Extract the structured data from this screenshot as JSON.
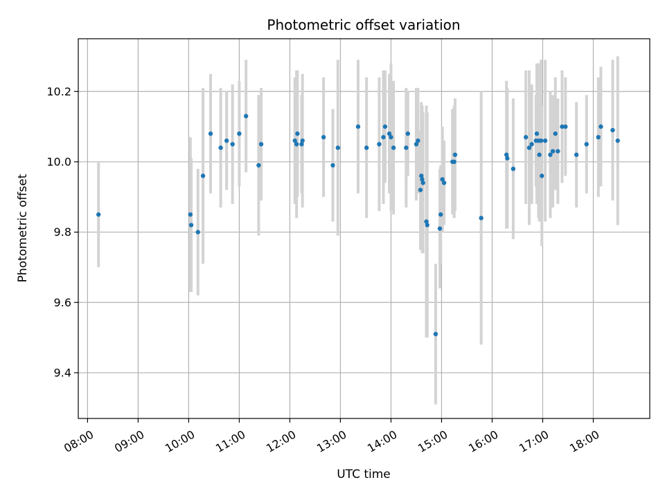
{
  "chart_data": {
    "type": "scatter",
    "title": "Photometric offset variation",
    "xlabel": "UTC time",
    "ylabel": "Photometric offset",
    "x_tick_labels": [
      "08:00",
      "09:00",
      "10:00",
      "11:00",
      "12:00",
      "13:00",
      "14:00",
      "15:00",
      "16:00",
      "17:00",
      "18:00"
    ],
    "x_ticks": [
      "08:00",
      "09:00",
      "10:00",
      "11:00",
      "12:00",
      "13:00",
      "14:00",
      "15:00",
      "16:00",
      "17:00",
      "18:00"
    ],
    "y_tick_labels": [
      "9.4",
      "9.6",
      "9.8",
      "10.0",
      "10.2"
    ],
    "y_ticks": [
      9.4,
      9.6,
      9.8,
      10.0,
      10.2
    ],
    "xlim": [
      "07:49",
      "19:07"
    ],
    "ylim": [
      9.27,
      10.35
    ],
    "grid": true,
    "colors": {
      "point": "#1f77b4",
      "errorbar": "#d3d3d3",
      "grid": "#b0b0b0"
    },
    "series": [
      {
        "x": [
          "08:13",
          "10:02",
          "10:03",
          "10:11",
          "10:17",
          "10:26",
          "10:38",
          "10:45",
          "10:52",
          "11:00",
          "11:08",
          "11:23",
          "11:26",
          "12:06",
          "12:08",
          "12:09",
          "12:14",
          "12:15",
          "12:40",
          "12:51",
          "12:57",
          "13:21",
          "13:31",
          "13:46",
          "13:51",
          "13:53",
          "13:58",
          "14:00",
          "14:03",
          "14:18",
          "14:20",
          "14:30",
          "14:32",
          "14:35",
          "14:36",
          "14:37",
          "14:38",
          "14:42",
          "14:43",
          "14:53",
          "14:58",
          "14:59",
          "15:01",
          "15:03",
          "15:13",
          "15:15",
          "15:16",
          "15:47",
          "16:17",
          "16:18",
          "16:25",
          "16:40",
          "16:44",
          "16:47",
          "16:52",
          "16:53",
          "16:55",
          "16:56",
          "16:58",
          "16:59",
          "17:03",
          "17:09",
          "17:12",
          "17:15",
          "17:18",
          "17:23",
          "17:27",
          "17:40",
          "17:52",
          "18:06",
          "18:09",
          "18:23",
          "18:29"
        ],
        "y": [
          9.85,
          9.85,
          9.82,
          9.8,
          9.96,
          10.08,
          10.04,
          10.06,
          10.05,
          10.08,
          10.13,
          9.99,
          10.05,
          10.06,
          10.05,
          10.08,
          10.05,
          10.06,
          10.07,
          9.99,
          10.04,
          10.1,
          10.04,
          10.05,
          10.07,
          10.1,
          10.08,
          10.07,
          10.04,
          10.04,
          10.08,
          10.05,
          10.06,
          9.92,
          9.96,
          9.95,
          9.94,
          9.83,
          9.82,
          9.51,
          9.81,
          9.85,
          9.95,
          9.94,
          10.0,
          10.0,
          10.02,
          9.84,
          10.02,
          10.01,
          9.98,
          10.07,
          10.04,
          10.05,
          10.06,
          10.08,
          10.06,
          10.02,
          10.06,
          9.96,
          10.06,
          10.02,
          10.03,
          10.08,
          10.03,
          10.1,
          10.1,
          10.02,
          10.05,
          10.07,
          10.1,
          10.09,
          10.06
        ],
        "yerr": [
          0.15,
          0.22,
          0.19,
          0.18,
          0.25,
          0.17,
          0.17,
          0.14,
          0.17,
          0.15,
          0.16,
          0.2,
          0.16,
          0.18,
          0.21,
          0.18,
          0.14,
          0.19,
          0.17,
          0.16,
          0.25,
          0.19,
          0.2,
          0.19,
          0.19,
          0.16,
          0.17,
          0.21,
          0.19,
          0.17,
          0.12,
          0.16,
          0.15,
          0.17,
          0.21,
          0.21,
          0.2,
          0.33,
          0.32,
          0.2,
          0.17,
          0.14,
          0.15,
          0.12,
          0.15,
          0.16,
          0.16,
          0.36,
          0.21,
          0.2,
          0.2,
          0.19,
          0.22,
          0.17,
          0.13,
          0.2,
          0.22,
          0.19,
          0.23,
          0.2,
          0.23,
          0.18,
          0.16,
          0.16,
          0.15,
          0.16,
          0.14,
          0.15,
          0.14,
          0.17,
          0.17,
          0.2,
          0.24
        ]
      }
    ]
  }
}
